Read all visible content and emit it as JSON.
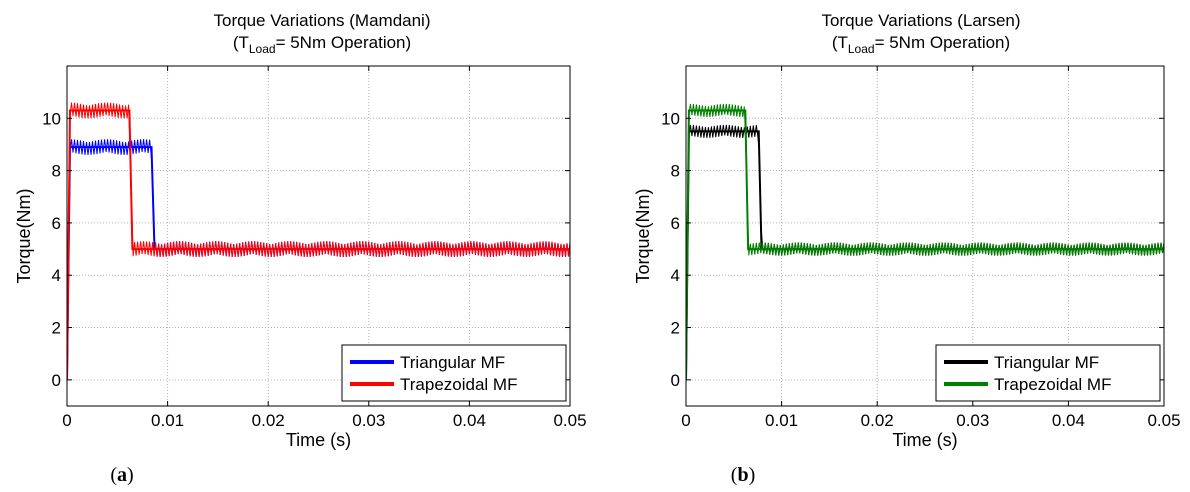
{
  "panels": [
    {
      "title_line1": "Torque Variations (Mamdani)",
      "title_line2_prefix": "(T",
      "title_line2_sub": "Load",
      "title_line2_suffix": "= 5Nm Operation)",
      "caption_open": "(",
      "caption_letter": "a",
      "caption_close": ")"
    },
    {
      "title_line1": "Torque Variations (Larsen)",
      "title_line2_prefix": "(T",
      "title_line2_sub": "Load",
      "title_line2_suffix": "= 5Nm Operation)",
      "caption_open": "(",
      "caption_letter": "b",
      "caption_close": ")"
    }
  ],
  "chart_data": [
    {
      "type": "line",
      "title": "Torque Variations (Mamdani) (TLoad= 5Nm Operation)",
      "xlabel": "Time (s)",
      "ylabel": "Torque(Nm)",
      "xlim": [
        0,
        0.05
      ],
      "ylim": [
        -1,
        12
      ],
      "xticks": [
        "0",
        "0.01",
        "0.02",
        "0.03",
        "0.04",
        "0.05"
      ],
      "yticks": [
        "0",
        "2",
        "4",
        "6",
        "8",
        "10"
      ],
      "grid": true,
      "legend_position": "bottom-right",
      "series": [
        {
          "name": "Triangular MF",
          "color": "#0000ff",
          "x": [
            0,
            0.0003,
            0.0084,
            0.0087,
            0.05
          ],
          "y": [
            0,
            8.9,
            8.9,
            5.0,
            5.0
          ],
          "ripple": 0.3
        },
        {
          "name": "Trapezoidal MF",
          "color": "#ff0000",
          "x": [
            0,
            0.0003,
            0.0062,
            0.0065,
            0.05
          ],
          "y": [
            0,
            10.3,
            10.3,
            5.0,
            5.0
          ],
          "ripple": 0.3
        }
      ]
    },
    {
      "type": "line",
      "title": "Torque Variations (Larsen) (TLoad= 5Nm Operation)",
      "xlabel": "Time (s)",
      "ylabel": "Torque(Nm)",
      "xlim": [
        0,
        0.05
      ],
      "ylim": [
        -1,
        12
      ],
      "xticks": [
        "0",
        "0.01",
        "0.02",
        "0.03",
        "0.04",
        "0.05"
      ],
      "yticks": [
        "0",
        "2",
        "4",
        "6",
        "8",
        "10"
      ],
      "grid": true,
      "legend_position": "bottom-right",
      "series": [
        {
          "name": "Triangular MF",
          "color": "#000000",
          "x": [
            0,
            0.0003,
            0.0076,
            0.0079,
            0.05
          ],
          "y": [
            0,
            9.5,
            9.5,
            5.0,
            5.0
          ],
          "ripple": 0.25
        },
        {
          "name": "Trapezoidal MF",
          "color": "#008000",
          "x": [
            0,
            0.0003,
            0.0062,
            0.0065,
            0.05
          ],
          "y": [
            0,
            10.3,
            10.3,
            5.0,
            5.0
          ],
          "ripple": 0.25
        }
      ]
    }
  ]
}
